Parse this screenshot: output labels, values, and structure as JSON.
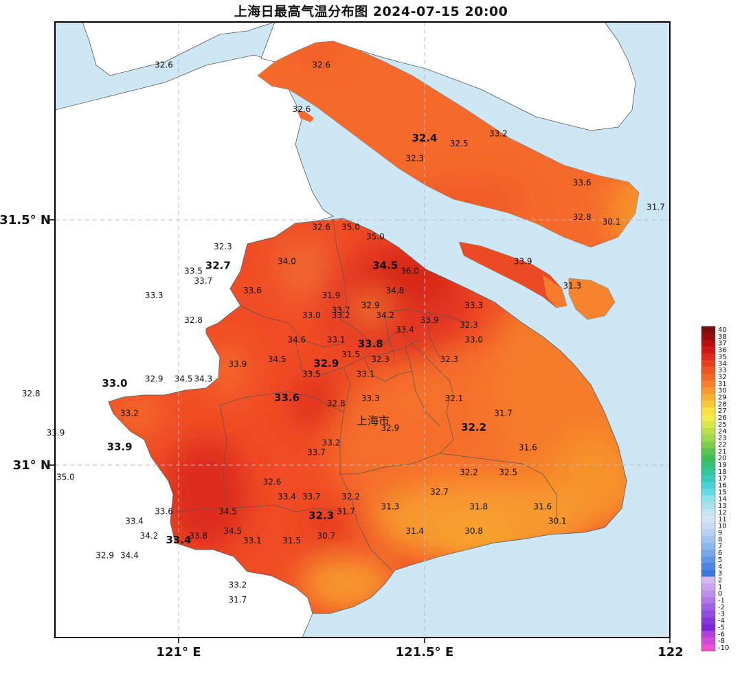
{
  "title": "上海日最高气温分布图 2024-07-15 20:00",
  "city_label": "上海市",
  "axes": {
    "x_ticks": [
      {
        "lon": 121.0,
        "label": "121° E"
      },
      {
        "lon": 121.5,
        "label": "121.5° E"
      },
      {
        "lon": 122.0,
        "label": "122"
      }
    ],
    "y_ticks": [
      {
        "lat": 31.5,
        "label": "31.5° N"
      },
      {
        "lat": 31.0,
        "label": "31° N"
      }
    ]
  },
  "colors": {
    "sea": "#cde7f4",
    "outside_land": "#ffffff",
    "temp_30": "#f7a424",
    "temp_31": "#f78a2a",
    "temp_32": "#f56a2a",
    "temp_33": "#ef4a24",
    "temp_34": "#e8331d",
    "temp_35": "#d62419",
    "temp_36": "#c51814"
  },
  "legend": {
    "labels": [
      "40",
      "38",
      "37",
      "36",
      "35",
      "34",
      "33",
      "32",
      "31",
      "30",
      "29",
      "28",
      "27",
      "26",
      "25",
      "24",
      "23",
      "22",
      "21",
      "20",
      "19",
      "18",
      "17",
      "16",
      "15",
      "14",
      "13",
      "12",
      "11",
      "10",
      "9",
      "8",
      "7",
      "6",
      "5",
      "4",
      "3",
      "2",
      "1",
      "0",
      "-1",
      "-2",
      "-3",
      "-4",
      "-5",
      "-6",
      "-8",
      "-10"
    ],
    "colors": [
      "#7a0d0d",
      "#9a0c0c",
      "#b70f0f",
      "#d01616",
      "#e02820",
      "#e8401f",
      "#ef5522",
      "#f26a25",
      "#f5822a",
      "#f79830",
      "#f8b033",
      "#f9c83a",
      "#f8e043",
      "#f1ec47",
      "#d8e84a",
      "#bce04c",
      "#9fd84e",
      "#7ccf4e",
      "#5ac44e",
      "#3cbe54",
      "#33c277",
      "#30c79a",
      "#35ccbb",
      "#48d3d6",
      "#66dbe5",
      "#8ce3ec",
      "#addfef",
      "#c4e4f2",
      "#d2e6f3",
      "#c7dcf2",
      "#b8d1f0",
      "#a3c4ef",
      "#8db6ee",
      "#77a6ea",
      "#5f97e8",
      "#4a86e3",
      "#3c78dc",
      "#d7b8f0",
      "#caa3ef",
      "#bd8eec",
      "#ae78e8",
      "#9f60e3",
      "#924be0",
      "#8536dc",
      "#7c26d8",
      "#b13fdc",
      "#d24ad9",
      "#f04fd4"
    ]
  },
  "stations": [
    {
      "v": "32.6",
      "lon": 120.97,
      "lat": 31.81
    },
    {
      "v": "32.6",
      "lon": 121.29,
      "lat": 31.81
    },
    {
      "v": "32.6",
      "lon": 121.25,
      "lat": 31.72
    },
    {
      "v": "32.4",
      "lon": 121.5,
      "lat": 31.66,
      "big": true
    },
    {
      "v": "32.5",
      "lon": 121.57,
      "lat": 31.65
    },
    {
      "v": "33.2",
      "lon": 121.65,
      "lat": 31.67
    },
    {
      "v": "32.3",
      "lon": 121.48,
      "lat": 31.62
    },
    {
      "v": "33.6",
      "lon": 121.82,
      "lat": 31.57
    },
    {
      "v": "32.8",
      "lon": 121.82,
      "lat": 31.5
    },
    {
      "v": "31.7",
      "lon": 121.97,
      "lat": 31.52
    },
    {
      "v": "30.1",
      "lon": 121.88,
      "lat": 31.49
    },
    {
      "v": "32.6",
      "lon": 121.29,
      "lat": 31.48
    },
    {
      "v": "35.0",
      "lon": 121.35,
      "lat": 31.48
    },
    {
      "v": "35.0",
      "lon": 121.4,
      "lat": 31.46
    },
    {
      "v": "32.3",
      "lon": 121.09,
      "lat": 31.44
    },
    {
      "v": "34.0",
      "lon": 121.22,
      "lat": 31.41
    },
    {
      "v": "34.5",
      "lon": 121.42,
      "lat": 31.4,
      "big": true
    },
    {
      "v": "36.0",
      "lon": 121.47,
      "lat": 31.39
    },
    {
      "v": "33.9",
      "lon": 121.7,
      "lat": 31.41
    },
    {
      "v": "32.7",
      "lon": 121.08,
      "lat": 31.4,
      "big": true
    },
    {
      "v": "33.5",
      "lon": 121.03,
      "lat": 31.39
    },
    {
      "v": "33.7",
      "lon": 121.05,
      "lat": 31.37
    },
    {
      "v": "33.6",
      "lon": 121.15,
      "lat": 31.35
    },
    {
      "v": "33.3",
      "lon": 120.95,
      "lat": 31.34
    },
    {
      "v": "31.9",
      "lon": 121.31,
      "lat": 31.34
    },
    {
      "v": "34.8",
      "lon": 121.44,
      "lat": 31.35
    },
    {
      "v": "31.3",
      "lon": 121.8,
      "lat": 31.36
    },
    {
      "v": "33.7",
      "lon": 121.33,
      "lat": 31.31
    },
    {
      "v": "32.9",
      "lon": 121.39,
      "lat": 31.32
    },
    {
      "v": "34.2",
      "lon": 121.42,
      "lat": 31.3
    },
    {
      "v": "33.3",
      "lon": 121.6,
      "lat": 31.32
    },
    {
      "v": "33.0",
      "lon": 121.27,
      "lat": 31.3
    },
    {
      "v": "33.2",
      "lon": 121.33,
      "lat": 31.3
    },
    {
      "v": "32.8",
      "lon": 121.03,
      "lat": 31.29
    },
    {
      "v": "33.9",
      "lon": 121.51,
      "lat": 31.29
    },
    {
      "v": "32.3",
      "lon": 121.59,
      "lat": 31.28
    },
    {
      "v": "33.4",
      "lon": 121.46,
      "lat": 31.27
    },
    {
      "v": "34.6",
      "lon": 121.24,
      "lat": 31.25
    },
    {
      "v": "33.1",
      "lon": 121.32,
      "lat": 31.25
    },
    {
      "v": "33.8",
      "lon": 121.39,
      "lat": 31.24,
      "big": true
    },
    {
      "v": "33.0",
      "lon": 121.6,
      "lat": 31.25
    },
    {
      "v": "31.5",
      "lon": 121.35,
      "lat": 31.22
    },
    {
      "v": "32.3",
      "lon": 121.41,
      "lat": 31.21
    },
    {
      "v": "33.9",
      "lon": 121.12,
      "lat": 31.2
    },
    {
      "v": "34.5",
      "lon": 121.2,
      "lat": 31.21
    },
    {
      "v": "32.9",
      "lon": 121.3,
      "lat": 31.2,
      "big": true
    },
    {
      "v": "32.3",
      "lon": 121.55,
      "lat": 31.21
    },
    {
      "v": "33.5",
      "lon": 121.27,
      "lat": 31.18
    },
    {
      "v": "33.1",
      "lon": 121.38,
      "lat": 31.18
    },
    {
      "v": "32.9",
      "lon": 120.95,
      "lat": 31.17
    },
    {
      "v": "34.5",
      "lon": 121.01,
      "lat": 31.17
    },
    {
      "v": "34.3",
      "lon": 121.05,
      "lat": 31.17
    },
    {
      "v": "33.0",
      "lon": 120.87,
      "lat": 31.16,
      "big": true
    },
    {
      "v": "32.8",
      "lon": 120.7,
      "lat": 31.14
    },
    {
      "v": "33.6",
      "lon": 121.22,
      "lat": 31.13,
      "big": true
    },
    {
      "v": "32.8",
      "lon": 121.32,
      "lat": 31.12
    },
    {
      "v": "33.3",
      "lon": 121.39,
      "lat": 31.13
    },
    {
      "v": "32.1",
      "lon": 121.56,
      "lat": 31.13
    },
    {
      "v": "33.2",
      "lon": 120.9,
      "lat": 31.1
    },
    {
      "v": "31.7",
      "lon": 121.66,
      "lat": 31.1
    },
    {
      "v": "32.2",
      "lon": 121.6,
      "lat": 31.07,
      "big": true
    },
    {
      "v": "32.9",
      "lon": 121.43,
      "lat": 31.07
    },
    {
      "v": "33.9",
      "lon": 120.75,
      "lat": 31.06
    },
    {
      "v": "33.2",
      "lon": 121.31,
      "lat": 31.04
    },
    {
      "v": "33.9",
      "lon": 120.88,
      "lat": 31.03,
      "big": true
    },
    {
      "v": "31.6",
      "lon": 121.71,
      "lat": 31.03
    },
    {
      "v": "33.7",
      "lon": 121.28,
      "lat": 31.02
    },
    {
      "v": "32.2",
      "lon": 121.59,
      "lat": 30.98
    },
    {
      "v": "32.5",
      "lon": 121.67,
      "lat": 30.98
    },
    {
      "v": "35.0",
      "lon": 120.77,
      "lat": 30.97
    },
    {
      "v": "32.6",
      "lon": 121.19,
      "lat": 30.96
    },
    {
      "v": "32.7",
      "lon": 121.53,
      "lat": 30.94
    },
    {
      "v": "32.2",
      "lon": 121.35,
      "lat": 30.93
    },
    {
      "v": "33.4",
      "lon": 121.22,
      "lat": 30.93
    },
    {
      "v": "33.7",
      "lon": 121.27,
      "lat": 30.93
    },
    {
      "v": "31.3",
      "lon": 121.43,
      "lat": 30.91
    },
    {
      "v": "31.8",
      "lon": 121.61,
      "lat": 30.91
    },
    {
      "v": "31.6",
      "lon": 121.74,
      "lat": 30.91
    },
    {
      "v": "33.6",
      "lon": 120.97,
      "lat": 30.9
    },
    {
      "v": "34.5",
      "lon": 121.1,
      "lat": 30.9
    },
    {
      "v": "31.7",
      "lon": 121.34,
      "lat": 30.9
    },
    {
      "v": "32.3",
      "lon": 121.29,
      "lat": 30.89,
      "big": true
    },
    {
      "v": "30.1",
      "lon": 121.77,
      "lat": 30.88
    },
    {
      "v": "33.4",
      "lon": 120.91,
      "lat": 30.88
    },
    {
      "v": "34.5",
      "lon": 121.11,
      "lat": 30.86
    },
    {
      "v": "31.4",
      "lon": 121.48,
      "lat": 30.86
    },
    {
      "v": "30.8",
      "lon": 121.6,
      "lat": 30.86
    },
    {
      "v": "34.2",
      "lon": 120.94,
      "lat": 30.85
    },
    {
      "v": "33.8",
      "lon": 121.04,
      "lat": 30.85
    },
    {
      "v": "33.4",
      "lon": 121.0,
      "lat": 30.84,
      "big": true
    },
    {
      "v": "30.7",
      "lon": 121.3,
      "lat": 30.85
    },
    {
      "v": "33.1",
      "lon": 121.15,
      "lat": 30.84
    },
    {
      "v": "31.5",
      "lon": 121.23,
      "lat": 30.84
    },
    {
      "v": "32.9",
      "lon": 120.85,
      "lat": 30.81
    },
    {
      "v": "34.4",
      "lon": 120.9,
      "lat": 30.81
    },
    {
      "v": "33.2",
      "lon": 121.12,
      "lat": 30.75
    },
    {
      "v": "31.7",
      "lon": 121.12,
      "lat": 30.72
    }
  ]
}
